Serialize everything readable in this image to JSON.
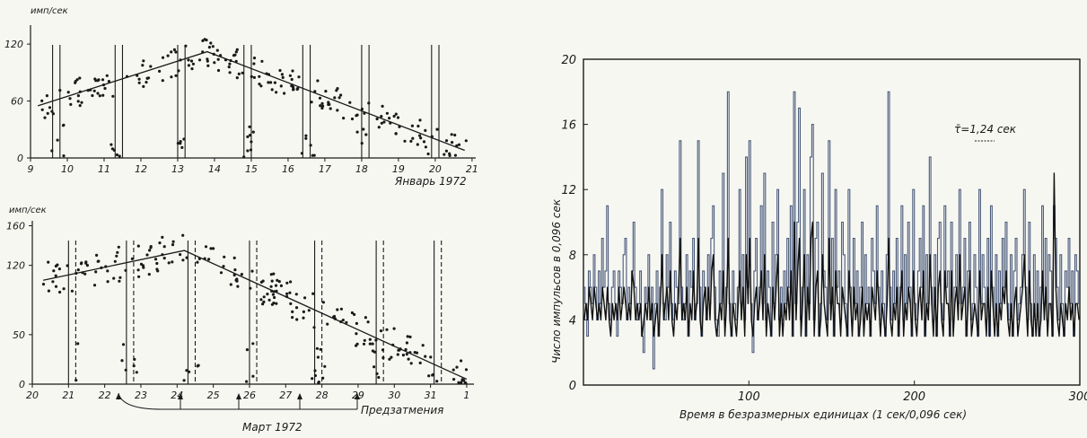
{
  "chart_data": [
    {
      "type": "scatter",
      "ylabel": "имп/сек",
      "yticks": [
        "0",
        "60",
        "120"
      ],
      "ylim": [
        0,
        140
      ],
      "xticks": [
        "9",
        "10",
        "11",
        "12",
        "13",
        "14",
        "15",
        "16",
        "17",
        "18",
        "19",
        "20",
        "21"
      ],
      "xlim": [
        9,
        21.1
      ],
      "xlabel": "Январь 1972",
      "trend": [
        [
          9.2,
          55
        ],
        [
          13.8,
          112
        ],
        [
          20.8,
          8
        ]
      ],
      "eclipse_lines": [
        9.6,
        9.8,
        11.3,
        11.5,
        13.0,
        13.2,
        14.8,
        15.0,
        16.4,
        16.6,
        18.0,
        18.2,
        19.9,
        20.1
      ]
    },
    {
      "type": "scatter",
      "ylabel": "имп/сек",
      "yticks": [
        "0",
        "50",
        "120",
        "160"
      ],
      "ylim": [
        0,
        165
      ],
      "xticks": [
        "20",
        "21",
        "22",
        "23",
        "24",
        "25",
        "26",
        "27",
        "28",
        "29",
        "30",
        "31",
        "1"
      ],
      "xlim": [
        20,
        32.2
      ],
      "xlabel": "Март 1972",
      "annotation": "Предзатмения",
      "trend": [
        [
          20.3,
          105
        ],
        [
          24.2,
          135
        ],
        [
          32.0,
          5
        ]
      ],
      "eclipse_lines": [
        21.0,
        21.2,
        22.6,
        22.8,
        24.3,
        24.5,
        26.0,
        26.2,
        27.8,
        28.0,
        29.5,
        29.7,
        31.1,
        31.3
      ]
    },
    {
      "type": "line",
      "ylabel": "Число импульсов в 0,096 сек",
      "xlabel": "Время в безразмерных единицах (1 сек/0,096 сек)",
      "yticks": [
        "0",
        "4",
        "8",
        "12",
        "16",
        "20"
      ],
      "xticks": [
        "100",
        "200",
        "300"
      ],
      "ylim": [
        0,
        20
      ],
      "xlim": [
        0,
        300
      ],
      "annotation": "τ̄=1,24 сек",
      "series": [
        {
          "style": "step",
          "values": [
            6,
            5,
            3,
            7,
            6,
            5,
            8,
            6,
            4,
            7,
            5,
            9,
            6,
            7,
            11,
            5,
            4,
            6,
            7,
            5,
            3,
            7,
            6,
            5,
            8,
            9,
            4,
            6,
            5,
            7,
            10,
            6,
            4,
            5,
            7,
            3,
            2,
            6,
            5,
            8,
            4,
            6,
            1,
            5,
            7,
            3,
            6,
            12,
            5,
            4,
            8,
            6,
            10,
            5,
            4,
            7,
            6,
            5,
            15,
            6,
            4,
            5,
            8,
            3,
            7,
            6,
            9,
            4,
            5,
            15,
            6,
            3,
            7,
            6,
            4,
            8,
            5,
            9,
            11,
            6,
            4,
            3,
            7,
            5,
            13,
            4,
            6,
            18,
            5,
            3,
            7,
            5,
            4,
            6,
            12,
            5,
            8,
            4,
            14,
            6,
            15,
            5,
            2,
            7,
            9,
            4,
            6,
            11,
            5,
            13,
            4,
            7,
            6,
            3,
            10,
            5,
            8,
            12,
            4,
            6,
            4,
            7,
            5,
            9,
            6,
            11,
            3,
            18,
            5,
            10,
            17,
            4,
            6,
            12,
            3,
            8,
            5,
            14,
            16,
            4,
            9,
            10,
            3,
            5,
            13,
            7,
            6,
            4,
            15,
            5,
            9,
            3,
            12,
            6,
            7,
            4,
            10,
            8,
            5,
            3,
            12,
            6,
            4,
            9,
            5,
            7,
            3,
            6,
            10,
            4,
            8,
            5,
            6,
            3,
            9,
            7,
            5,
            11,
            6,
            4,
            7,
            5,
            3,
            8,
            18,
            6,
            4,
            7,
            5,
            9,
            3,
            6,
            11,
            4,
            8,
            5,
            10,
            6,
            3,
            12,
            5,
            4,
            7,
            9,
            6,
            11,
            3,
            8,
            5,
            14,
            6,
            4,
            8,
            3,
            9,
            10,
            5,
            4,
            11,
            6,
            7,
            3,
            10,
            4,
            6,
            8,
            5,
            12,
            5,
            6,
            9,
            3,
            7,
            10,
            4,
            5,
            8,
            6,
            3,
            12,
            5,
            8,
            6,
            4,
            9,
            3,
            11,
            6,
            4,
            8,
            3,
            7,
            5,
            9,
            6,
            10,
            5,
            4,
            8,
            3,
            7,
            9,
            4,
            5,
            6,
            8,
            12,
            6,
            4,
            10,
            5,
            3,
            8,
            4,
            7,
            3,
            6,
            11,
            5,
            9,
            4,
            8,
            7,
            3,
            11,
            9,
            6,
            4,
            8,
            5,
            3,
            7,
            6,
            9,
            5,
            7,
            3,
            8,
            7,
            5
          ]
        },
        {
          "style": "smooth",
          "values": [
            4,
            5,
            4,
            6,
            5,
            4,
            6,
            5,
            4,
            5,
            4,
            6,
            5,
            4,
            6,
            4,
            3,
            5,
            4,
            5,
            4,
            6,
            4,
            5,
            6,
            5,
            4,
            5,
            4,
            7,
            6,
            4,
            5,
            4,
            5,
            3,
            4,
            5,
            4,
            6,
            4,
            5,
            3,
            4,
            5,
            3,
            5,
            8,
            4,
            5,
            6,
            4,
            7,
            4,
            3,
            5,
            4,
            6,
            9,
            4,
            5,
            4,
            6,
            3,
            5,
            4,
            7,
            4,
            5,
            9,
            4,
            3,
            5,
            6,
            4,
            6,
            4,
            7,
            8,
            4,
            3,
            4,
            5,
            4,
            7,
            3,
            5,
            9,
            4,
            3,
            5,
            4,
            3,
            5,
            7,
            4,
            6,
            3,
            8,
            5,
            9,
            4,
            3,
            5,
            6,
            4,
            5,
            7,
            4,
            8,
            3,
            5,
            4,
            3,
            6,
            4,
            6,
            8,
            3,
            5,
            3,
            5,
            4,
            6,
            4,
            7,
            3,
            10,
            4,
            7,
            9,
            3,
            5,
            8,
            3,
            6,
            4,
            9,
            10,
            3,
            6,
            7,
            3,
            4,
            8,
            5,
            4,
            3,
            9,
            4,
            6,
            3,
            7,
            5,
            5,
            3,
            6,
            5,
            4,
            3,
            7,
            5,
            3,
            6,
            4,
            5,
            3,
            4,
            6,
            3,
            5,
            4,
            5,
            3,
            6,
            5,
            4,
            7,
            5,
            3,
            5,
            4,
            3,
            5,
            9,
            4,
            3,
            5,
            4,
            6,
            3,
            5,
            7,
            3,
            5,
            4,
            6,
            5,
            3,
            7,
            4,
            3,
            5,
            6,
            4,
            7,
            3,
            5,
            4,
            8,
            5,
            3,
            6,
            3,
            6,
            7,
            4,
            3,
            7,
            5,
            5,
            3,
            7,
            3,
            5,
            6,
            4,
            8,
            4,
            5,
            6,
            3,
            5,
            7,
            3,
            4,
            5,
            4,
            3,
            7,
            4,
            5,
            5,
            3,
            6,
            3,
            7,
            5,
            3,
            5,
            3,
            5,
            4,
            6,
            5,
            7,
            4,
            3,
            5,
            3,
            5,
            6,
            3,
            4,
            5,
            6,
            8,
            5,
            3,
            7,
            4,
            3,
            5,
            3,
            5,
            3,
            4,
            7,
            4,
            6,
            3,
            5,
            5,
            3,
            13,
            6,
            4,
            3,
            5,
            4,
            3,
            5,
            4,
            6,
            4,
            5,
            3,
            5,
            5,
            4
          ]
        }
      ]
    }
  ]
}
